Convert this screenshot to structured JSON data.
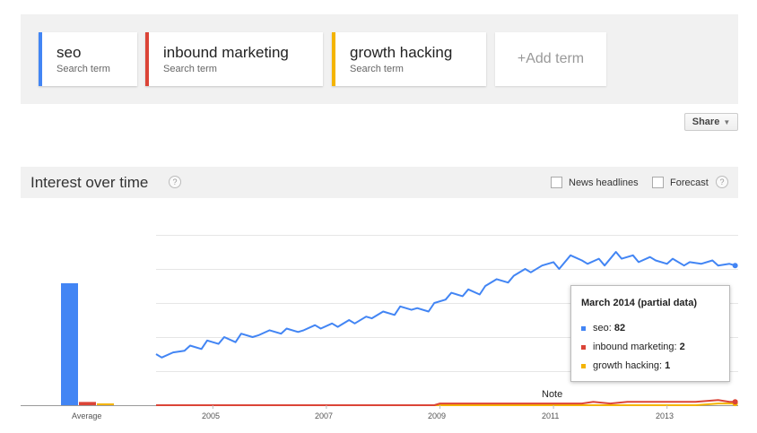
{
  "terms": [
    {
      "name": "seo",
      "subtitle": "Search term",
      "color": "#4285f4"
    },
    {
      "name": "inbound marketing",
      "subtitle": "Search term",
      "color": "#db4437"
    },
    {
      "name": "growth hacking",
      "subtitle": "Search term",
      "color": "#f4b400"
    }
  ],
  "add_term_label": "+Add term",
  "share_label": "Share",
  "section": {
    "title": "Interest over time",
    "help_icon": "?",
    "news_headlines_label": "News headlines",
    "forecast_label": "Forecast"
  },
  "chart_data": {
    "type": "line",
    "x_tick_labels": [
      "2005",
      "2007",
      "2009",
      "2011",
      "2013"
    ],
    "average_label": "Average",
    "averages": [
      {
        "name": "seo",
        "value": 75
      },
      {
        "name": "inbound marketing",
        "value": 2
      },
      {
        "name": "growth hacking",
        "value": 1
      }
    ],
    "ylim": [
      0,
      100
    ],
    "x_start": 2004.0,
    "annotation": "Note",
    "series": [
      {
        "name": "seo",
        "color": "#4285f4",
        "values": [
          [
            2004.0,
            30
          ],
          [
            2004.1,
            28
          ],
          [
            2004.3,
            31
          ],
          [
            2004.5,
            32
          ],
          [
            2004.6,
            35
          ],
          [
            2004.8,
            33
          ],
          [
            2004.9,
            38
          ],
          [
            2005.1,
            36
          ],
          [
            2005.2,
            40
          ],
          [
            2005.4,
            37
          ],
          [
            2005.5,
            42
          ],
          [
            2005.7,
            40
          ],
          [
            2005.8,
            41
          ],
          [
            2006.0,
            44
          ],
          [
            2006.2,
            42
          ],
          [
            2006.3,
            45
          ],
          [
            2006.5,
            43
          ],
          [
            2006.6,
            44
          ],
          [
            2006.8,
            47
          ],
          [
            2006.9,
            45
          ],
          [
            2007.1,
            48
          ],
          [
            2007.2,
            46
          ],
          [
            2007.4,
            50
          ],
          [
            2007.5,
            48
          ],
          [
            2007.7,
            52
          ],
          [
            2007.8,
            51
          ],
          [
            2008.0,
            55
          ],
          [
            2008.2,
            53
          ],
          [
            2008.3,
            58
          ],
          [
            2008.5,
            56
          ],
          [
            2008.6,
            57
          ],
          [
            2008.8,
            55
          ],
          [
            2008.9,
            60
          ],
          [
            2009.1,
            62
          ],
          [
            2009.2,
            66
          ],
          [
            2009.4,
            64
          ],
          [
            2009.5,
            68
          ],
          [
            2009.7,
            65
          ],
          [
            2009.8,
            70
          ],
          [
            2010.0,
            74
          ],
          [
            2010.2,
            72
          ],
          [
            2010.3,
            76
          ],
          [
            2010.5,
            80
          ],
          [
            2010.6,
            78
          ],
          [
            2010.8,
            82
          ],
          [
            2011.0,
            84
          ],
          [
            2011.1,
            80
          ],
          [
            2011.3,
            88
          ],
          [
            2011.5,
            85
          ],
          [
            2011.6,
            83
          ],
          [
            2011.8,
            86
          ],
          [
            2011.9,
            82
          ],
          [
            2012.1,
            90
          ],
          [
            2012.2,
            86
          ],
          [
            2012.4,
            88
          ],
          [
            2012.5,
            84
          ],
          [
            2012.7,
            87
          ],
          [
            2012.8,
            85
          ],
          [
            2013.0,
            83
          ],
          [
            2013.1,
            86
          ],
          [
            2013.3,
            82
          ],
          [
            2013.4,
            84
          ],
          [
            2013.6,
            83
          ],
          [
            2013.8,
            85
          ],
          [
            2013.9,
            82
          ],
          [
            2014.1,
            83
          ],
          [
            2014.2,
            82
          ]
        ]
      },
      {
        "name": "inbound marketing",
        "color": "#db4437",
        "values": [
          [
            2004.0,
            0
          ],
          [
            2008.9,
            0
          ],
          [
            2009.0,
            1
          ],
          [
            2010.0,
            1
          ],
          [
            2010.5,
            1
          ],
          [
            2011.0,
            1
          ],
          [
            2011.5,
            1
          ],
          [
            2011.7,
            2
          ],
          [
            2012.0,
            1
          ],
          [
            2012.3,
            2
          ],
          [
            2012.6,
            2
          ],
          [
            2013.0,
            2
          ],
          [
            2013.5,
            2
          ],
          [
            2013.9,
            3
          ],
          [
            2014.1,
            2
          ],
          [
            2014.2,
            2
          ]
        ]
      },
      {
        "name": "growth hacking",
        "color": "#f4b400",
        "values": [
          [
            2004.0,
            0
          ],
          [
            2012.8,
            0
          ],
          [
            2013.0,
            0
          ],
          [
            2013.5,
            0
          ],
          [
            2013.9,
            1
          ],
          [
            2014.1,
            1
          ],
          [
            2014.2,
            1
          ]
        ]
      }
    ]
  },
  "tooltip": {
    "title": "March 2014 (partial data)",
    "rows": [
      {
        "label": "seo:",
        "value": "82",
        "color": "#4285f4"
      },
      {
        "label": "inbound marketing:",
        "value": "2",
        "color": "#db4437"
      },
      {
        "label": "growth hacking:",
        "value": "1",
        "color": "#f4b400"
      }
    ]
  }
}
